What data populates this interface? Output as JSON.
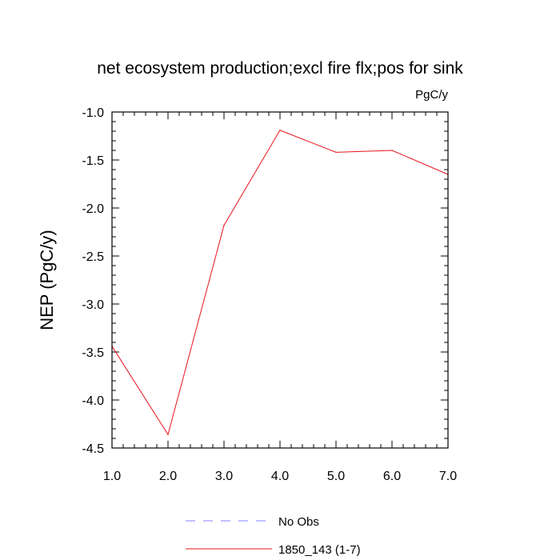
{
  "chart_data": {
    "type": "line",
    "title": "net ecosystem production;excl fire flx;pos for sink",
    "units": "PgC/y",
    "xlabel": "",
    "ylabel": "NEP  (PgC/y)",
    "xlim": [
      1.0,
      7.0
    ],
    "ylim": [
      -4.5,
      -1.0
    ],
    "grid": false,
    "x_ticks": [
      "1.0",
      "2.0",
      "3.0",
      "4.0",
      "5.0",
      "6.0",
      "7.0"
    ],
    "y_ticks": [
      "-1.0",
      "-1.5",
      "-2.0",
      "-2.5",
      "-3.0",
      "-3.5",
      "-4.0",
      "-4.5"
    ],
    "legend_position": "bottom-center",
    "series": [
      {
        "name": "No Obs",
        "color": "#8080ff",
        "dash": "dashed",
        "x": [],
        "values": []
      },
      {
        "name": "1850_143 (1-7)",
        "color": "#e8141c",
        "dash": "solid",
        "x": [
          1.0,
          2.0,
          3.0,
          4.0,
          5.0,
          6.0,
          7.0
        ],
        "values": [
          -3.44,
          -4.36,
          -2.18,
          -1.19,
          -1.42,
          -1.4,
          -1.65
        ]
      }
    ]
  }
}
